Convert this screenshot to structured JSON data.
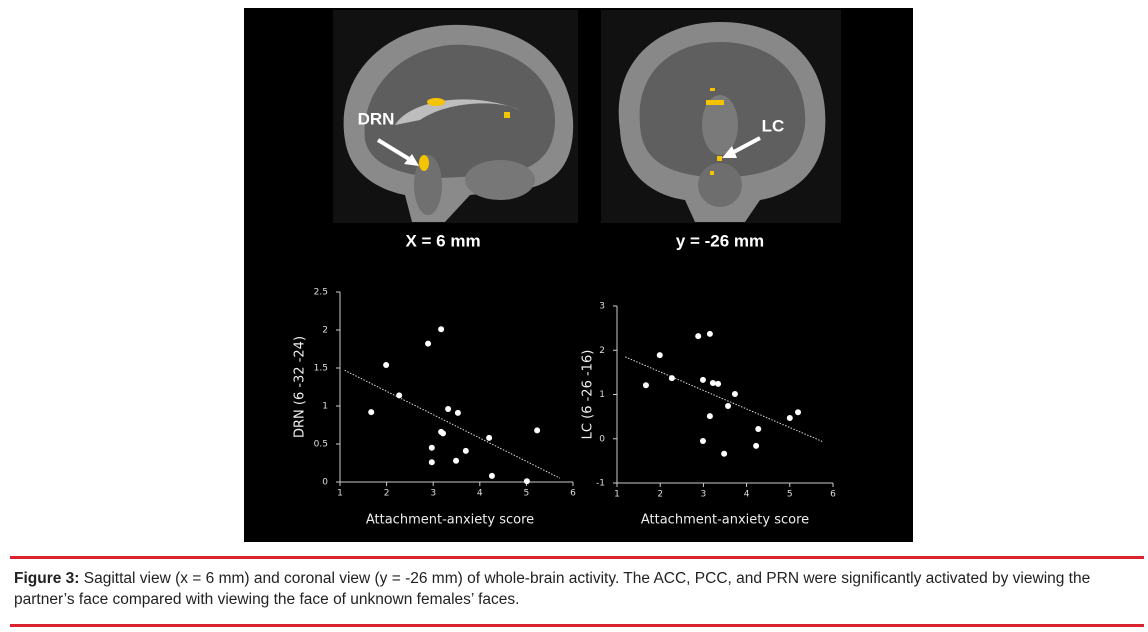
{
  "images": [
    {
      "label": "DRN",
      "caption": "X = 6 mm"
    },
    {
      "label": "LC",
      "caption": "y = -26 mm"
    }
  ],
  "chart_data": [
    {
      "type": "scatter",
      "xlabel": "Attachment-anxiety score",
      "ylabel": "DRN (6 -32 -24)",
      "xlim": [
        1,
        6
      ],
      "ylim": [
        0,
        2.5
      ],
      "xticks": [
        1,
        2,
        3,
        4,
        5,
        6
      ],
      "yticks": [
        0,
        0.5,
        1,
        1.5,
        2,
        2.5
      ],
      "color": "#ffffff",
      "x": [
        1.67,
        1.99,
        2.27,
        2.89,
        3.17,
        2.97,
        2.97,
        3.17,
        3.21,
        3.32,
        3.53,
        3.49,
        3.7,
        4.2,
        4.26,
        5.01,
        5.23
      ],
      "y": [
        0.92,
        1.54,
        1.14,
        1.82,
        2.01,
        0.45,
        0.26,
        0.66,
        0.64,
        0.96,
        0.91,
        0.28,
        0.41,
        0.58,
        0.08,
        0.01,
        0.68
      ],
      "trendline": {
        "x": [
          1.1,
          5.72
        ],
        "y": [
          1.47,
          0.05
        ]
      }
    },
    {
      "type": "scatter",
      "xlabel": "Attachment-anxiety score",
      "ylabel": "LC (6 -26 -16)",
      "xlim": [
        1,
        6
      ],
      "ylim": [
        -1,
        3
      ],
      "xticks": [
        1,
        2,
        3,
        4,
        5,
        6
      ],
      "yticks": [
        -1,
        0,
        1,
        2,
        3
      ],
      "color": "#ffffff",
      "x": [
        1.67,
        1.99,
        2.27,
        2.88,
        3.15,
        2.99,
        3.22,
        3.34,
        2.99,
        3.15,
        3.73,
        3.57,
        3.48,
        4.27,
        4.22,
        5.0,
        5.19
      ],
      "y": [
        1.21,
        1.89,
        1.37,
        2.32,
        2.37,
        1.33,
        1.26,
        1.24,
        -0.05,
        0.51,
        1.01,
        0.74,
        -0.34,
        0.22,
        -0.16,
        0.47,
        0.6
      ],
      "trendline": {
        "x": [
          1.19,
          5.75
        ],
        "y": [
          1.85,
          -0.06
        ]
      }
    }
  ],
  "caption": {
    "label": "Figure 3:",
    "text": "Sagittal view (x = 6 mm) and coronal view (y = -26 mm) of whole-brain activity. The ACC, PCC, and PRN were significantly activated by viewing the partner’s face compared with viewing the face of unknown females’ faces."
  }
}
